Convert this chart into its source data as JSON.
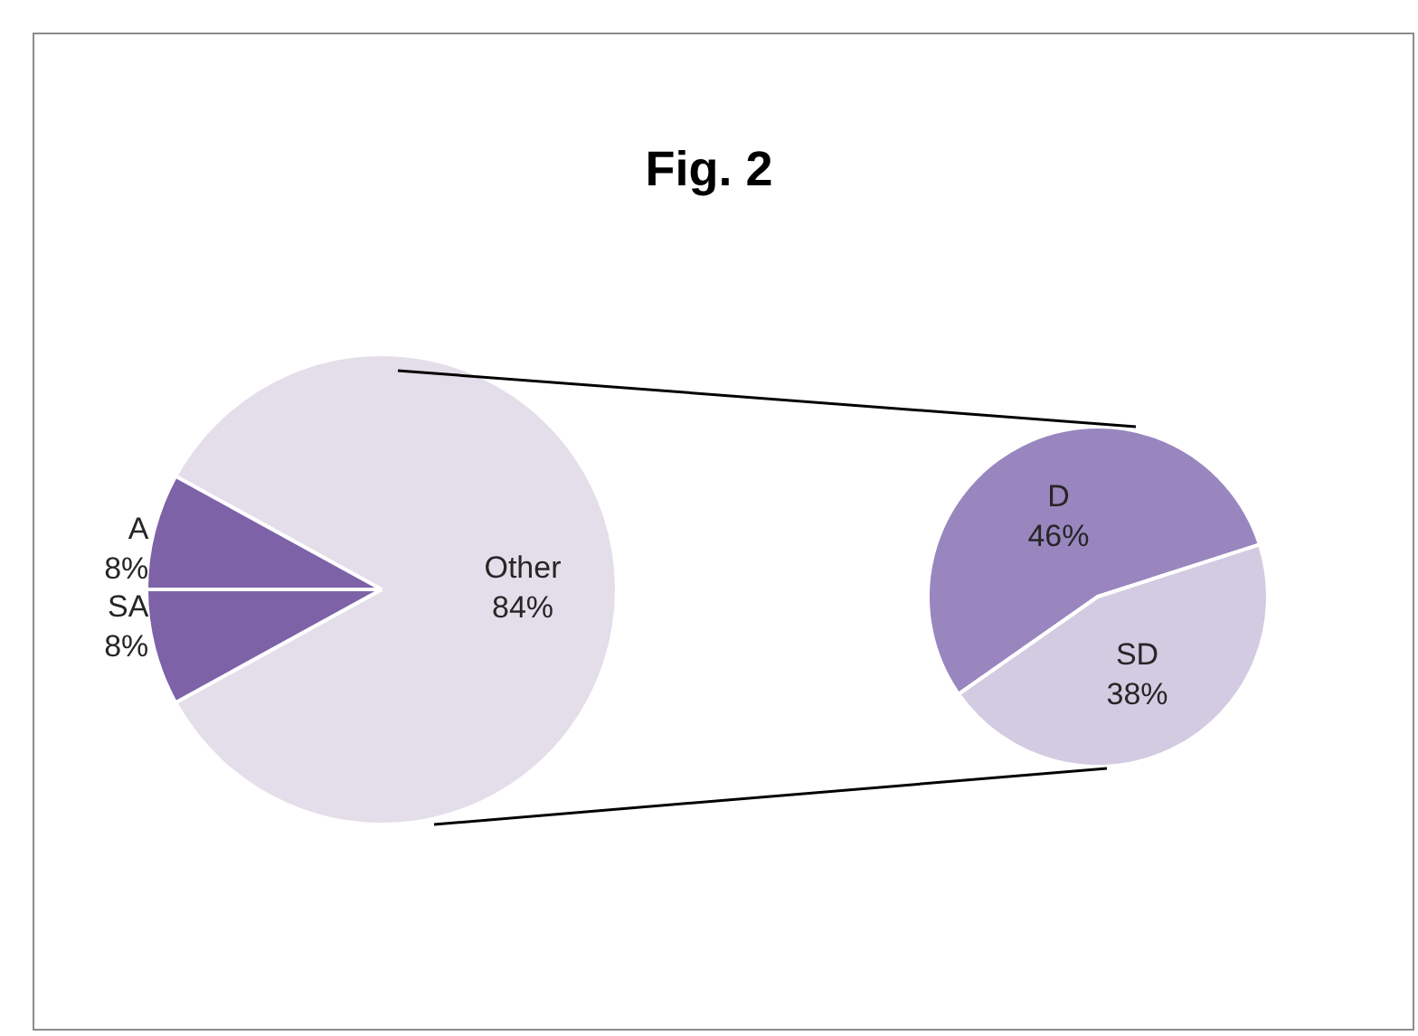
{
  "chart_data": [
    {
      "type": "pie",
      "title": "Fig. 2",
      "categories": [
        "A",
        "SA",
        "Other"
      ],
      "values": [
        8,
        8,
        84
      ],
      "colors": [
        "#7d62a8",
        "#7d62a8",
        "#e3deea"
      ],
      "value_labels": [
        "8%",
        "8%",
        "84%"
      ]
    },
    {
      "type": "pie",
      "categories": [
        "D",
        "SD"
      ],
      "values": [
        46,
        38
      ],
      "colors": [
        "#9a86bf",
        "#d3cbe2"
      ],
      "value_labels": [
        "46%",
        "38%"
      ]
    }
  ]
}
